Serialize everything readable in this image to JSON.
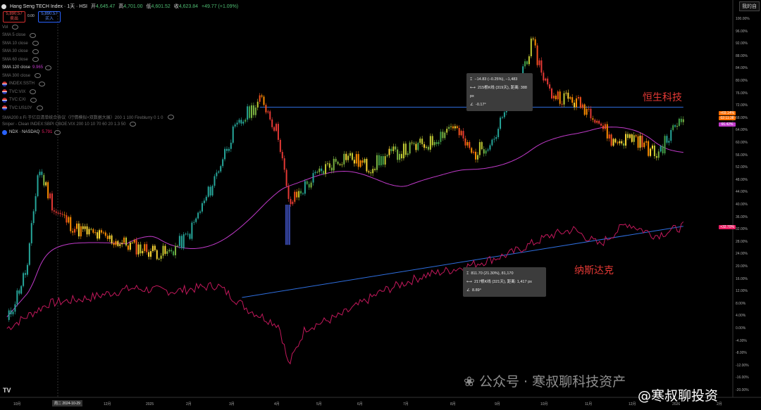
{
  "header": {
    "symbol_title": "Hang Seng TECH Index · 1天 · HSI",
    "open_label": "开",
    "open": "4,645.47",
    "high_label": "高",
    "high": "4,701.00",
    "low_label": "低",
    "low": "4,601.52",
    "close_label": "收",
    "close": "4,623.84",
    "change": "+49.77 (+1.09%)",
    "sell_price": "5,890.57",
    "sell_label": "卖出",
    "spread": "0.00",
    "buy_price": "5,890.57",
    "buy_label": "买入",
    "top_right_button": "我的自"
  },
  "indicators": [
    {
      "label": "Vol",
      "value": ""
    },
    {
      "label": "SMA 5 close",
      "value": ""
    },
    {
      "label": "SMA 10 close",
      "value": ""
    },
    {
      "label": "SMA 30 close",
      "value": ""
    },
    {
      "label": "SMA 60 close",
      "value": ""
    },
    {
      "label": "SMA 120 close",
      "value": "9.965"
    },
    {
      "label": "SMA 300 close",
      "value": ""
    },
    {
      "label": "INDEX:SSTH",
      "value": ""
    },
    {
      "label": "TVC:VIX",
      "value": ""
    },
    {
      "label": "TVC:CXI",
      "value": ""
    },
    {
      "label": "TVC:US10Y",
      "value": ""
    },
    {
      "label": "SMA200 ± Fi 于亿日清单统合协议（行情模拟+双数据大展）200 1 100 Fireblurry 0 1 0",
      "value": ""
    },
    {
      "label": "Sniper - Clean INDEX:SBPI CBOE:VIX 200 10 10 70 60 20 1.3 50",
      "value": ""
    },
    {
      "label": "NDX · NASDAQ",
      "value": "5.791"
    }
  ],
  "measure_top": {
    "line1": "−14.83 (−0.25%), −1,483",
    "line2": "215根K线 (319天), 距离: 388 px",
    "line3": "-0.17°"
  },
  "measure_bottom": {
    "line1": "811.70 (21.30%), 81,170",
    "line2": "217根K线 (321天), 距离: 1,417 px",
    "line3": "8.89°"
  },
  "annotations": {
    "hstech": "恒生科技",
    "nasdaq": "纳斯达克",
    "watermark1": "公众号 · 寒叔聊科技资产",
    "watermark2": "@寒叔聊投资",
    "tv_logo": "TV"
  },
  "price_tags": {
    "hstech_pct": "+69.14%",
    "hstech_time": "02:11:38",
    "hstech_val": "66.42%",
    "nasdaq_pct": "+32.70%"
  },
  "y_axis": [
    "100.00%",
    "96.00%",
    "92.00%",
    "88.00%",
    "84.00%",
    "80.00%",
    "76.00%",
    "72.00%",
    "68.00%",
    "64.00%",
    "60.00%",
    "56.00%",
    "52.00%",
    "48.00%",
    "44.00%",
    "40.00%",
    "36.00%",
    "32.00%",
    "28.00%",
    "24.00%",
    "20.00%",
    "16.00%",
    "12.00%",
    "8.00%",
    "4.00%",
    "0.00%",
    "-4.00%",
    "-8.00%",
    "-12.00%",
    "-16.00%",
    "-20.00%"
  ],
  "x_axis": [
    {
      "label": "10月",
      "x": 27
    },
    {
      "label": "周二 2024-10-29",
      "x": 82,
      "highlight": true
    },
    {
      "label": "12月",
      "x": 155
    },
    {
      "label": "2025",
      "x": 215
    },
    {
      "label": "2月",
      "x": 272
    },
    {
      "label": "3月",
      "x": 333
    },
    {
      "label": "4月",
      "x": 397
    },
    {
      "label": "5月",
      "x": 457
    },
    {
      "label": "6月",
      "x": 515
    },
    {
      "label": "7月",
      "x": 580
    },
    {
      "label": "8月",
      "x": 647
    },
    {
      "label": "9月",
      "x": 710
    },
    {
      "label": "10月",
      "x": 775
    },
    {
      "label": "11月",
      "x": 838
    },
    {
      "label": "12月",
      "x": 900
    },
    {
      "label": "2026",
      "x": 962
    },
    {
      "label": "2月",
      "x": 1025
    }
  ],
  "colors": {
    "background": "#000000",
    "ma_line": "#c03ac9",
    "ndx_line": "#c2185b",
    "trend_line": "#2f6fe0",
    "annotation_red": "#e53935",
    "tag_orange": "#ff6d00",
    "tag_pink": "#e91e63"
  },
  "chart_data": {
    "type": "line",
    "ylim": [
      -20,
      100
    ],
    "series": [
      {
        "name": "Hang Seng TECH Index",
        "x": [
          "2024-09-15",
          "2024-09-30",
          "2024-10-08",
          "2024-10-20",
          "2024-11-05",
          "2024-11-20",
          "2024-12-05",
          "2024-12-20",
          "2025-01-10",
          "2025-01-25",
          "2025-02-10",
          "2025-02-25",
          "2025-03-10",
          "2025-03-20",
          "2025-04-01",
          "2025-04-08",
          "2025-04-20",
          "2025-05-05",
          "2025-05-20",
          "2025-06-05",
          "2025-06-20",
          "2025-07-05",
          "2025-07-20",
          "2025-08-05",
          "2025-08-20",
          "2025-09-05",
          "2025-09-20",
          "2025-10-02",
          "2025-10-15",
          "2025-10-30",
          "2025-11-15",
          "2025-11-30",
          "2025-12-15",
          "2025-12-31",
          "2026-01-10",
          "2026-01-20"
        ],
        "values": [
          2,
          20,
          52,
          38,
          32,
          30,
          28,
          26,
          24,
          30,
          45,
          62,
          70,
          74,
          62,
          40,
          46,
          52,
          56,
          52,
          56,
          58,
          60,
          66,
          56,
          62,
          78,
          92,
          76,
          74,
          70,
          60,
          62,
          56,
          62,
          70
        ]
      },
      {
        "name": "NDX · NASDAQ",
        "x": [
          "2024-09-15",
          "2024-10-15",
          "2024-11-15",
          "2024-12-15",
          "2025-01-15",
          "2025-02-15",
          "2025-03-10",
          "2025-04-01",
          "2025-04-08",
          "2025-04-20",
          "2025-05-15",
          "2025-06-15",
          "2025-07-15",
          "2025-08-15",
          "2025-09-15",
          "2025-10-15",
          "2025-11-01",
          "2025-11-20",
          "2025-12-10",
          "2025-12-31",
          "2026-01-20"
        ],
        "values": [
          0,
          8,
          10,
          13,
          12,
          14,
          6,
          1,
          -12,
          0,
          4,
          12,
          17,
          20,
          24,
          30,
          32,
          27,
          34,
          30,
          33
        ]
      }
    ]
  }
}
